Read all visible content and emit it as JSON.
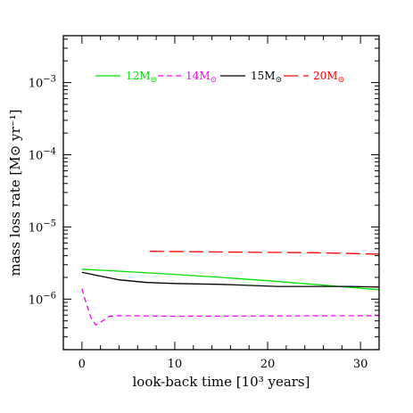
{
  "chart_data": {
    "type": "line",
    "xlabel": "look-back time [10³ years]",
    "ylabel": "mass loss rate [M⊙ yr⁻¹]",
    "xlim": [
      -2,
      32
    ],
    "ylim_log10": [
      -6.7,
      -2.35
    ],
    "y_scale": "log",
    "x_ticks": [
      0,
      10,
      20,
      30
    ],
    "x_tick_labels": [
      "0",
      "10",
      "20",
      "30"
    ],
    "y_ticks_log10": [
      -6,
      -5,
      -4,
      -3
    ],
    "y_tick_labels": [
      {
        "base": "10",
        "exp": "−6"
      },
      {
        "base": "10",
        "exp": "−5"
      },
      {
        "base": "10",
        "exp": "−4"
      },
      {
        "base": "10",
        "exp": "−3"
      }
    ],
    "legend_position": "top",
    "series": [
      {
        "name": "12M⊙",
        "name_main": "12M",
        "name_sub": "⊙",
        "color": "#00e000",
        "dash": "solid",
        "x": [
          0,
          5,
          10,
          15,
          20,
          25,
          32
        ],
        "y": [
          2.6e-06,
          2.4e-06,
          2.2e-06,
          2e-06,
          1.8e-06,
          1.6e-06,
          1.35e-06
        ]
      },
      {
        "name": "14M⊙",
        "name_main": "14M",
        "name_sub": "⊙",
        "color": "#ff00ff",
        "dash": "short",
        "x": [
          0,
          0.5,
          1.0,
          1.5,
          2.0,
          3.0,
          4.0,
          10,
          20,
          32
        ],
        "y": [
          1.4e-06,
          8.5e-07,
          5.5e-07,
          4.4e-07,
          4.8e-07,
          5.8e-07,
          5.9e-07,
          5.8e-07,
          5.85e-07,
          5.9e-07
        ]
      },
      {
        "name": "15M⊙",
        "name_main": "15M",
        "name_sub": "⊙",
        "color": "#000000",
        "dash": "solid",
        "x": [
          0,
          1.5,
          4,
          7,
          10,
          15,
          21,
          25,
          29,
          32
        ],
        "y": [
          2.35e-06,
          2.15e-06,
          1.85e-06,
          1.7e-06,
          1.65e-06,
          1.6e-06,
          1.5e-06,
          1.5e-06,
          1.5e-06,
          1.47e-06
        ]
      },
      {
        "name": "20M⊙",
        "name_main": "20M",
        "name_sub": "⊙",
        "color": "#ff0000",
        "dash": "long",
        "x": [
          7.3,
          15,
          25,
          32
        ],
        "y": [
          4.6e-06,
          4.5e-06,
          4.4e-06,
          4.2e-06
        ]
      }
    ]
  }
}
